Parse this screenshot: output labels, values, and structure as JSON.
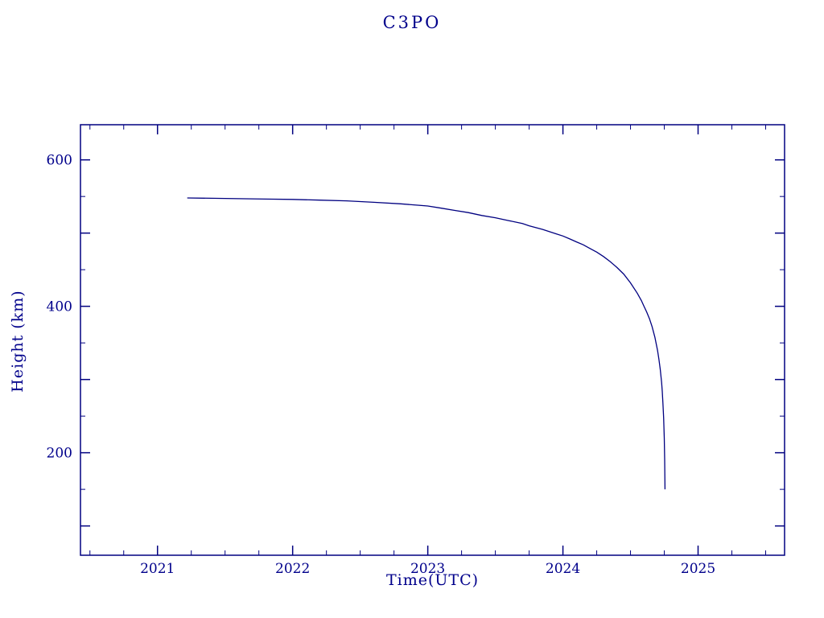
{
  "chart_data": {
    "type": "line",
    "title": "C3PO",
    "xlabel": "Time(UTC)",
    "ylabel": "Height (km)",
    "xlim": [
      2020.43,
      2025.64
    ],
    "ylim": [
      60,
      648
    ],
    "xticks": [
      2021,
      2022,
      2023,
      2024,
      2025
    ],
    "yticks": [
      200,
      400,
      600
    ],
    "x_major_step": 1,
    "x_minor_step": 0.25,
    "y_major_step": 100,
    "y_minor_step": 50,
    "grid": false,
    "legend": "none",
    "axis_color": "#000080",
    "line_color": "#000080",
    "text_color": "#00008b",
    "series": [
      {
        "name": "height",
        "points": [
          [
            2021.22,
            548
          ],
          [
            2021.4,
            547.5
          ],
          [
            2021.6,
            547
          ],
          [
            2021.8,
            546.5
          ],
          [
            2022.0,
            546
          ],
          [
            2022.2,
            545
          ],
          [
            2022.4,
            544
          ],
          [
            2022.6,
            542
          ],
          [
            2022.8,
            540
          ],
          [
            2023.0,
            537
          ],
          [
            2023.1,
            534
          ],
          [
            2023.2,
            531
          ],
          [
            2023.3,
            528
          ],
          [
            2023.4,
            524
          ],
          [
            2023.5,
            521
          ],
          [
            2023.6,
            517
          ],
          [
            2023.7,
            513
          ],
          [
            2023.75,
            510
          ],
          [
            2023.85,
            505
          ],
          [
            2023.95,
            499
          ],
          [
            2024.0,
            496
          ],
          [
            2024.05,
            492
          ],
          [
            2024.1,
            488
          ],
          [
            2024.15,
            484
          ],
          [
            2024.2,
            479
          ],
          [
            2024.25,
            474
          ],
          [
            2024.3,
            468
          ],
          [
            2024.35,
            461
          ],
          [
            2024.4,
            453
          ],
          [
            2024.45,
            444
          ],
          [
            2024.5,
            432
          ],
          [
            2024.55,
            418
          ],
          [
            2024.58,
            408
          ],
          [
            2024.6,
            400
          ],
          [
            2024.62,
            392
          ],
          [
            2024.64,
            383
          ],
          [
            2024.66,
            372
          ],
          [
            2024.68,
            358
          ],
          [
            2024.7,
            340
          ],
          [
            2024.71,
            328
          ],
          [
            2024.72,
            314
          ],
          [
            2024.73,
            296
          ],
          [
            2024.735,
            284
          ],
          [
            2024.74,
            268
          ],
          [
            2024.745,
            248
          ],
          [
            2024.75,
            220
          ],
          [
            2024.753,
            190
          ],
          [
            2024.755,
            150
          ]
        ]
      }
    ]
  }
}
